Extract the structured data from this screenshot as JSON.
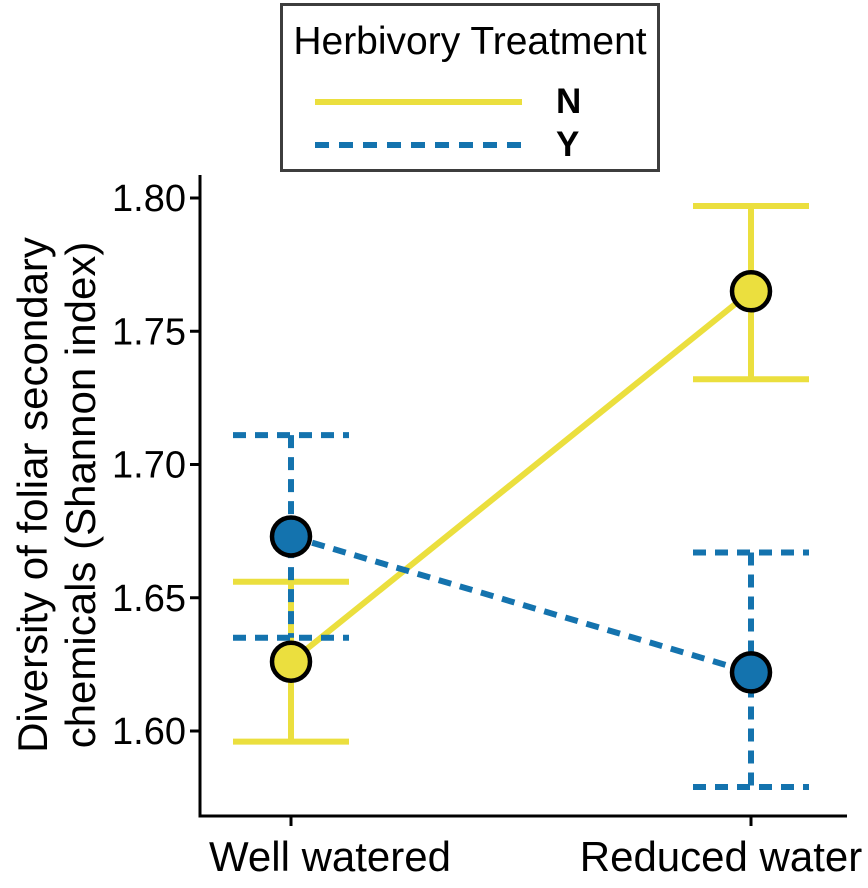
{
  "chart_data": {
    "type": "line",
    "title": "",
    "categories": [
      "Well watered",
      "Reduced water"
    ],
    "ylabel_lines": [
      "Diversity of foliar secondary",
      "chemicals (Shannon index)"
    ],
    "xlabel": "",
    "y_tick_values": [
      1.6,
      1.65,
      1.7,
      1.75,
      1.8
    ],
    "y_tick_labels": [
      "1.60",
      "1.65",
      "1.70",
      "1.75",
      "1.80"
    ],
    "ylim": [
      1.568,
      1.809
    ],
    "grid": false,
    "legend_position": "top-center",
    "error_bars": true,
    "marker": "circle",
    "marker_edge_color": "#000000",
    "axis_color": "#000000",
    "series": [
      {
        "name": "N",
        "line_style": "solid",
        "color": "#EBDF3E",
        "means": [
          1.626,
          1.765
        ],
        "ci_lower": [
          1.596,
          1.732
        ],
        "ci_upper": [
          1.656,
          1.797
        ]
      },
      {
        "name": "Y",
        "line_style": "dashed",
        "color": "#1473AE",
        "means": [
          1.673,
          1.622
        ],
        "ci_lower": [
          1.635,
          1.579
        ],
        "ci_upper": [
          1.711,
          1.667
        ]
      }
    ]
  },
  "legend": {
    "title": "Herbivory Treatment",
    "items": [
      {
        "label": "N",
        "line_style": "solid"
      },
      {
        "label": "Y",
        "line_style": "dashed"
      }
    ]
  }
}
